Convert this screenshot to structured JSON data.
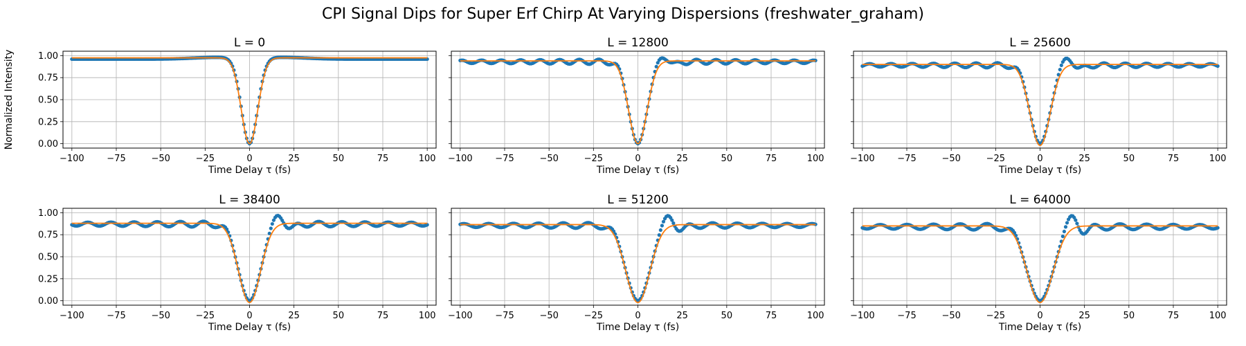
{
  "figure": {
    "title": "CPI Signal Dips for Super Erf Chirp At Varying Dispersions (freshwater_graham)"
  },
  "chart_data": [
    {
      "type": "scatter",
      "title": "L = 0",
      "xlabel": "Time Delay τ (fs)",
      "ylabel": "Normalized Intensity",
      "xlim": [
        -105,
        105
      ],
      "ylim": [
        -0.05,
        1.05
      ],
      "xticks": [
        -100,
        -75,
        -50,
        -25,
        0,
        25,
        50,
        75,
        100
      ],
      "yticks": [
        0.0,
        0.25,
        0.5,
        0.75,
        1.0
      ],
      "ytick_labels": [
        "0.00",
        "0.25",
        "0.50",
        "0.75",
        "1.00"
      ],
      "grid": true,
      "dip_width_fs": 4.5,
      "series": [
        {
          "kind": "scatter",
          "color": "#1f77b4",
          "baseline": 0.96,
          "ripple_amp": 0.0,
          "ripple_period_fs": 0,
          "bump_amp": 0.02,
          "min": 0.0
        },
        {
          "kind": "line",
          "color": "#ff7f0e",
          "baseline": 0.975,
          "min": 0.0
        }
      ]
    },
    {
      "type": "scatter",
      "title": "L = 12800",
      "xlabel": "Time Delay τ (fs)",
      "ylabel": "",
      "xlim": [
        -105,
        105
      ],
      "ylim": [
        -0.05,
        1.05
      ],
      "xticks": [
        -100,
        -75,
        -50,
        -25,
        0,
        25,
        50,
        75,
        100
      ],
      "yticks": [
        0.0,
        0.25,
        0.5,
        0.75,
        1.0
      ],
      "ytick_labels": [
        "",
        "",
        "",
        "",
        ""
      ],
      "grid": true,
      "dip_width_fs": 5,
      "series": [
        {
          "kind": "scatter",
          "color": "#1f77b4",
          "baseline": 0.93,
          "ripple_amp": 0.03,
          "ripple_period_fs": 11,
          "peak_amp": 0.07,
          "min": 0.0
        },
        {
          "kind": "line",
          "color": "#ff7f0e",
          "baseline": 0.94,
          "min": 0.0
        }
      ]
    },
    {
      "type": "scatter",
      "title": "L = 25600",
      "xlabel": "Time Delay τ (fs)",
      "ylabel": "",
      "xlim": [
        -105,
        105
      ],
      "ylim": [
        -0.05,
        1.05
      ],
      "xticks": [
        -100,
        -75,
        -50,
        -25,
        0,
        25,
        50,
        75,
        100
      ],
      "yticks": [
        0.0,
        0.25,
        0.5,
        0.75,
        1.0
      ],
      "ytick_labels": [
        "",
        "",
        "",
        "",
        ""
      ],
      "grid": true,
      "dip_width_fs": 5.5,
      "series": [
        {
          "kind": "scatter",
          "color": "#1f77b4",
          "baseline": 0.89,
          "ripple_amp": 0.03,
          "ripple_period_fs": 12,
          "peak_amp": 0.11,
          "min": 0.0
        },
        {
          "kind": "line",
          "color": "#ff7f0e",
          "baseline": 0.9,
          "min": -0.02
        }
      ]
    },
    {
      "type": "scatter",
      "title": "L = 38400",
      "xlabel": "Time Delay τ (fs)",
      "ylabel": "",
      "xlim": [
        -105,
        105
      ],
      "ylim": [
        -0.05,
        1.05
      ],
      "xticks": [
        -100,
        -75,
        -50,
        -25,
        0,
        25,
        50,
        75,
        100
      ],
      "yticks": [
        0.0,
        0.25,
        0.5,
        0.75,
        1.0
      ],
      "ytick_labels": [
        "0.00",
        "0.25",
        "0.50",
        "0.75",
        "1.00"
      ],
      "grid": true,
      "dip_width_fs": 6,
      "series": [
        {
          "kind": "scatter",
          "color": "#1f77b4",
          "baseline": 0.87,
          "ripple_amp": 0.035,
          "ripple_period_fs": 13,
          "peak_amp": 0.13,
          "min": 0.0
        },
        {
          "kind": "line",
          "color": "#ff7f0e",
          "baseline": 0.88,
          "min": -0.02
        }
      ]
    },
    {
      "type": "scatter",
      "title": "L = 51200",
      "xlabel": "Time Delay τ (fs)",
      "ylabel": "",
      "xlim": [
        -105,
        105
      ],
      "ylim": [
        -0.05,
        1.05
      ],
      "xticks": [
        -100,
        -75,
        -50,
        -25,
        0,
        25,
        50,
        75,
        100
      ],
      "yticks": [
        0.0,
        0.25,
        0.5,
        0.75,
        1.0
      ],
      "ytick_labels": [
        "",
        "",
        "",
        "",
        ""
      ],
      "grid": true,
      "dip_width_fs": 6.5,
      "series": [
        {
          "kind": "scatter",
          "color": "#1f77b4",
          "baseline": 0.855,
          "ripple_amp": 0.035,
          "ripple_period_fs": 14,
          "peak_amp": 0.145,
          "min": 0.0
        },
        {
          "kind": "line",
          "color": "#ff7f0e",
          "baseline": 0.865,
          "min": -0.02
        }
      ]
    },
    {
      "type": "scatter",
      "title": "L = 64000",
      "xlabel": "Time Delay τ (fs)",
      "ylabel": "",
      "xlim": [
        -105,
        105
      ],
      "ylim": [
        -0.05,
        1.05
      ],
      "xticks": [
        -100,
        -75,
        -50,
        -25,
        0,
        25,
        50,
        75,
        100
      ],
      "yticks": [
        0.0,
        0.25,
        0.5,
        0.75,
        1.0
      ],
      "ytick_labels": [
        "",
        "",
        "",
        "",
        ""
      ],
      "grid": true,
      "dip_width_fs": 7,
      "series": [
        {
          "kind": "scatter",
          "color": "#1f77b4",
          "baseline": 0.84,
          "ripple_amp": 0.04,
          "ripple_period_fs": 15,
          "peak_amp": 0.16,
          "min": 0.0
        },
        {
          "kind": "line",
          "color": "#ff7f0e",
          "baseline": 0.85,
          "min": -0.02
        }
      ]
    }
  ]
}
